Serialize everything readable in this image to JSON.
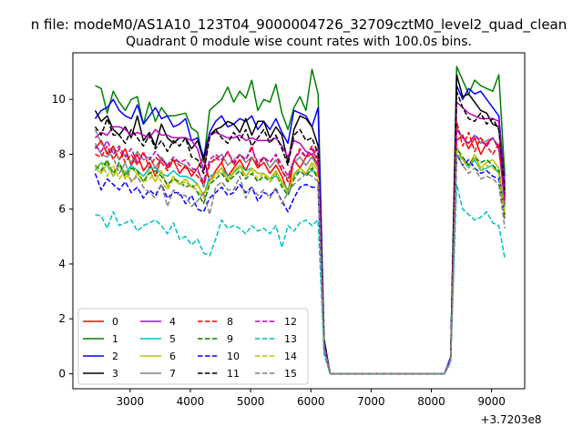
{
  "chart_data": {
    "type": "line",
    "suptitle": "n file: modeM0/AS1A10_123T04_9000004726_32709cztM0_level2_quad_clean",
    "title": "Quadrant 0 module wise count rates with 100.0s bins.",
    "xlabel": "",
    "ylabel": "",
    "x_offset_label": "+3.7203e8",
    "xlim": [
      2050,
      9550
    ],
    "ylim": [
      -0.55,
      11.7
    ],
    "x_ticks": [
      3000,
      4000,
      5000,
      6000,
      7000,
      8000,
      9000
    ],
    "x_tick_labels": [
      "3000",
      "4000",
      "5000",
      "6000",
      "7000",
      "8000",
      "9000"
    ],
    "y_ticks": [
      0,
      2,
      4,
      6,
      8,
      10
    ],
    "y_tick_labels": [
      "0",
      "2",
      "4",
      "6",
      "8",
      "10"
    ],
    "legend_position": "lower-left",
    "x": [
      2420,
      2520,
      2620,
      2720,
      2820,
      2920,
      3020,
      3120,
      3220,
      3320,
      3420,
      3520,
      3620,
      3720,
      3820,
      3920,
      4020,
      4120,
      4220,
      4320,
      4420,
      4520,
      4620,
      4720,
      4820,
      4920,
      5020,
      5120,
      5220,
      5320,
      5420,
      5520,
      5620,
      5720,
      5820,
      5920,
      6020,
      6120,
      6220,
      6320,
      6420,
      6520,
      6620,
      6720,
      6820,
      6920,
      7020,
      7120,
      7220,
      7320,
      7420,
      7520,
      7620,
      7720,
      7820,
      7920,
      8020,
      8120,
      8220,
      8320,
      8420,
      8520,
      8620,
      8720,
      8820,
      8920,
      9020,
      9120,
      9220
    ],
    "series": [
      {
        "name": "0",
        "color": "#ff0000",
        "dash": "solid",
        "values": [
          8.2,
          8.5,
          8.0,
          8.3,
          7.8,
          8.2,
          7.6,
          8.0,
          7.4,
          7.7,
          7.2,
          7.9,
          7.5,
          7.8,
          7.3,
          7.6,
          7.2,
          7.5,
          7.9,
          7.0,
          7.4,
          7.7,
          7.2,
          7.5,
          7.8,
          7.4,
          7.9,
          7.5,
          7.7,
          7.3,
          7.6,
          7.2,
          6.6,
          7.8,
          7.5,
          7.9,
          8.0,
          7.6,
          1.0,
          0,
          0,
          0,
          0,
          0,
          0,
          0,
          0,
          0,
          0,
          0,
          0,
          0,
          0,
          0,
          0,
          0,
          0,
          0,
          0,
          0.5,
          8.5,
          8.7,
          8.2,
          8.6,
          8.0,
          8.4,
          8.6,
          8.2,
          6.4
        ]
      },
      {
        "name": "1",
        "color": "#008000",
        "dash": "solid",
        "values": [
          10.5,
          10.4,
          9.5,
          10.3,
          9.9,
          9.6,
          10.0,
          10.1,
          9.1,
          9.9,
          9.2,
          9.7,
          9.4,
          9.4,
          9.45,
          9.5,
          8.95,
          8.8,
          7.7,
          9.6,
          9.8,
          10.0,
          10.45,
          9.9,
          10.3,
          10.05,
          10.7,
          9.6,
          10.0,
          9.9,
          10.55,
          9.5,
          8.9,
          9.7,
          10.1,
          9.6,
          11.1,
          10.2,
          1.3,
          0,
          0,
          0,
          0,
          0,
          0,
          0,
          0,
          0,
          0,
          0,
          0,
          0,
          0,
          0,
          0,
          0,
          0,
          0,
          0,
          0.6,
          11.2,
          10.7,
          10.2,
          10.7,
          10.5,
          10.4,
          10.3,
          10.9,
          7.2
        ]
      },
      {
        "name": "2",
        "color": "#0000ff",
        "dash": "solid",
        "values": [
          9.3,
          9.6,
          9.7,
          10.0,
          9.6,
          9.4,
          9.3,
          9.8,
          9.1,
          9.4,
          9.7,
          9.3,
          9.4,
          9.0,
          9.1,
          9.3,
          8.5,
          8.6,
          7.9,
          8.8,
          9.2,
          9.4,
          9.0,
          9.1,
          9.3,
          9.2,
          9.4,
          8.9,
          9.2,
          8.9,
          9.3,
          8.8,
          8.4,
          9.6,
          9.5,
          9.4,
          9.0,
          9.7,
          1.2,
          0,
          0,
          0,
          0,
          0,
          0,
          0,
          0,
          0,
          0,
          0,
          0,
          0,
          0,
          0,
          0,
          0,
          0,
          0,
          0,
          0.6,
          10.5,
          10.0,
          10.4,
          10.2,
          10.3,
          10.0,
          9.7,
          9.4,
          6.9
        ]
      },
      {
        "name": "3",
        "color": "#000000",
        "dash": "solid",
        "values": [
          9.6,
          9.2,
          9.4,
          8.9,
          8.7,
          9.0,
          8.6,
          9.4,
          8.5,
          8.8,
          8.3,
          9.1,
          8.6,
          8.4,
          8.6,
          8.6,
          8.2,
          8.5,
          7.8,
          8.7,
          8.9,
          9.0,
          9.2,
          9.1,
          8.8,
          9.3,
          8.7,
          9.2,
          9.2,
          8.6,
          9.0,
          8.7,
          7.7,
          8.9,
          9.4,
          9.3,
          9.0,
          8.3,
          1.1,
          0,
          0,
          0,
          0,
          0,
          0,
          0,
          0,
          0,
          0,
          0,
          0,
          0,
          0,
          0,
          0,
          0,
          0,
          0,
          0,
          0.5,
          10.9,
          10.1,
          10.2,
          9.9,
          9.6,
          9.5,
          9.1,
          9.0,
          6.5
        ]
      },
      {
        "name": "4",
        "color": "#bf00bf",
        "dash": "solid",
        "values": [
          8.6,
          8.8,
          8.7,
          9.0,
          9.0,
          8.9,
          8.7,
          8.8,
          8.7,
          8.6,
          8.9,
          8.7,
          8.7,
          8.6,
          8.6,
          8.6,
          8.5,
          8.2,
          7.4,
          8.7,
          8.8,
          8.7,
          8.6,
          8.6,
          8.7,
          8.5,
          8.6,
          8.5,
          8.5,
          8.5,
          8.6,
          8.3,
          7.9,
          8.5,
          8.4,
          8.1,
          8.0,
          8.2,
          1.1,
          0,
          0,
          0,
          0,
          0,
          0,
          0,
          0,
          0,
          0,
          0,
          0,
          0,
          0,
          0,
          0,
          0,
          0,
          0,
          0,
          0.5,
          9.9,
          9.7,
          9.5,
          9.4,
          9.3,
          9.3,
          9.3,
          9.2,
          6.7
        ]
      },
      {
        "name": "5",
        "color": "#00bfbf",
        "dash": "solid",
        "values": [
          7.4,
          7.7,
          7.6,
          7.2,
          7.6,
          7.3,
          7.6,
          7.4,
          7.2,
          7.5,
          7.5,
          7.3,
          7.2,
          7.4,
          7.2,
          7.2,
          7.1,
          6.9,
          6.5,
          7.2,
          7.3,
          7.5,
          7.2,
          7.3,
          7.6,
          7.4,
          7.5,
          7.3,
          7.3,
          7.1,
          7.2,
          7.0,
          6.7,
          7.2,
          7.5,
          7.3,
          7.4,
          7.3,
          0.9,
          0,
          0,
          0,
          0,
          0,
          0,
          0,
          0,
          0,
          0,
          0,
          0,
          0,
          0,
          0,
          0,
          0,
          0,
          0,
          0,
          0.5,
          8.0,
          7.8,
          7.5,
          7.8,
          7.4,
          7.5,
          7.6,
          7.3,
          5.9
        ]
      },
      {
        "name": "6",
        "color": "#bfbf00",
        "dash": "solid",
        "values": [
          7.5,
          7.3,
          7.7,
          7.2,
          7.6,
          7.1,
          7.5,
          7.3,
          7.0,
          7.4,
          7.0,
          7.4,
          6.8,
          7.2,
          6.9,
          7.1,
          6.8,
          6.9,
          6.5,
          7.0,
          7.3,
          7.5,
          7.0,
          7.4,
          7.6,
          7.2,
          7.5,
          7.3,
          7.3,
          7.1,
          7.4,
          7.0,
          6.6,
          7.3,
          7.5,
          7.3,
          7.7,
          7.4,
          0.9,
          0,
          0,
          0,
          0,
          0,
          0,
          0,
          0,
          0,
          0,
          0,
          0,
          0,
          0,
          0,
          0,
          0,
          0,
          0,
          0,
          0.5,
          8.3,
          7.8,
          7.6,
          8.0,
          7.5,
          7.7,
          7.8,
          7.5,
          5.8
        ]
      },
      {
        "name": "7",
        "color": "#808080",
        "dash": "solid",
        "values": [
          8.4,
          8.0,
          7.9,
          8.2,
          7.8,
          8.0,
          7.7,
          8.1,
          7.8,
          7.9,
          7.5,
          7.9,
          7.6,
          7.8,
          7.7,
          7.6,
          7.4,
          7.5,
          6.8,
          7.7,
          7.8,
          8.0,
          7.6,
          7.8,
          8.0,
          7.7,
          7.9,
          7.6,
          7.9,
          7.5,
          7.8,
          7.4,
          7.1,
          7.7,
          7.9,
          7.6,
          7.9,
          7.5,
          1.0,
          0,
          0,
          0,
          0,
          0,
          0,
          0,
          0,
          0,
          0,
          0,
          0,
          0,
          0,
          0,
          0,
          0,
          0,
          0,
          0,
          0.5,
          9.0,
          8.6,
          8.4,
          8.7,
          8.4,
          8.5,
          8.6,
          8.3,
          6.1
        ]
      },
      {
        "name": "8",
        "color": "#ff0000",
        "dash": "dashed",
        "values": [
          8.0,
          7.9,
          8.3,
          7.8,
          8.2,
          7.7,
          8.0,
          7.6,
          8.1,
          7.5,
          7.9,
          7.7,
          7.4,
          7.8,
          7.6,
          7.5,
          7.4,
          7.2,
          6.9,
          7.6,
          7.9,
          7.7,
          8.1,
          7.6,
          8.0,
          7.8,
          8.3,
          7.5,
          7.9,
          7.7,
          8.0,
          7.4,
          7.0,
          7.8,
          8.2,
          7.9,
          8.3,
          7.8,
          1.0,
          0,
          0,
          0,
          0,
          0,
          0,
          0,
          0,
          0,
          0,
          0,
          0,
          0,
          0,
          0,
          0,
          0,
          0,
          0,
          0,
          0.5,
          9.2,
          8.3,
          8.8,
          8.1,
          8.6,
          8.3,
          8.0,
          8.4,
          6.2
        ]
      },
      {
        "name": "9",
        "color": "#008000",
        "dash": "dashed",
        "values": [
          7.6,
          7.4,
          7.8,
          7.3,
          7.7,
          7.2,
          7.5,
          7.4,
          7.0,
          7.3,
          7.4,
          7.2,
          6.9,
          7.1,
          7.0,
          6.8,
          6.9,
          6.6,
          6.2,
          6.9,
          7.1,
          7.3,
          7.0,
          7.2,
          7.4,
          7.1,
          7.3,
          7.0,
          7.2,
          7.0,
          7.3,
          6.8,
          6.5,
          7.1,
          7.4,
          7.2,
          7.5,
          7.1,
          0.9,
          0,
          0,
          0,
          0,
          0,
          0,
          0,
          0,
          0,
          0,
          0,
          0,
          0,
          0,
          0,
          0,
          0,
          0,
          0,
          0,
          0.5,
          8.2,
          7.9,
          7.6,
          7.9,
          7.7,
          7.8,
          7.6,
          7.4,
          5.7
        ]
      },
      {
        "name": "10",
        "color": "#0000ff",
        "dash": "dashed",
        "values": [
          7.3,
          6.7,
          7.1,
          6.9,
          6.7,
          7.0,
          6.6,
          6.8,
          6.4,
          6.7,
          6.5,
          6.9,
          6.4,
          6.6,
          6.6,
          6.2,
          6.5,
          6.0,
          5.9,
          6.4,
          6.6,
          6.8,
          6.5,
          6.6,
          6.9,
          6.6,
          6.8,
          6.3,
          6.6,
          6.5,
          6.7,
          6.3,
          5.9,
          6.4,
          6.8,
          6.9,
          6.8,
          6.8,
          0.8,
          0,
          0,
          0,
          0,
          0,
          0,
          0,
          0,
          0,
          0,
          0,
          0,
          0,
          0,
          0,
          0,
          0,
          0,
          0,
          0,
          0.5,
          8.0,
          7.6,
          7.8,
          7.5,
          7.3,
          7.4,
          7.2,
          7.1,
          5.6
        ]
      },
      {
        "name": "11",
        "color": "#000000",
        "dash": "dashed",
        "values": [
          9.0,
          8.7,
          9.3,
          8.7,
          8.7,
          8.4,
          8.9,
          8.6,
          8.3,
          8.7,
          8.2,
          8.5,
          8.1,
          8.5,
          8.3,
          8.6,
          7.9,
          7.8,
          7.3,
          8.6,
          8.9,
          8.6,
          8.4,
          8.8,
          8.5,
          8.9,
          8.3,
          8.6,
          8.9,
          8.4,
          8.7,
          8.2,
          7.6,
          8.7,
          8.9,
          8.5,
          8.6,
          8.0,
          1.1,
          0,
          0,
          0,
          0,
          0,
          0,
          0,
          0,
          0,
          0,
          0,
          0,
          0,
          0,
          0,
          0,
          0,
          0,
          0,
          0,
          0.5,
          10.3,
          9.7,
          9.3,
          9.2,
          9.5,
          9.1,
          9.3,
          8.9,
          6.6
        ]
      },
      {
        "name": "12",
        "color": "#bf00bf",
        "dash": "dashed",
        "values": [
          8.3,
          8.1,
          8.5,
          8.0,
          8.3,
          7.9,
          8.2,
          7.7,
          8.0,
          7.8,
          8.1,
          7.8,
          7.6,
          7.9,
          7.7,
          7.8,
          7.5,
          7.4,
          7.0,
          7.8,
          8.0,
          7.8,
          8.1,
          7.7,
          8.0,
          7.8,
          8.2,
          7.7,
          7.9,
          7.7,
          8.0,
          7.6,
          7.2,
          7.8,
          8.1,
          7.9,
          8.2,
          7.7,
          1.0,
          0,
          0,
          0,
          0,
          0,
          0,
          0,
          0,
          0,
          0,
          0,
          0,
          0,
          0,
          0,
          0,
          0,
          0,
          0,
          0,
          0.5,
          8.9,
          8.6,
          8.4,
          8.7,
          8.5,
          8.3,
          8.6,
          8.2,
          6.3
        ]
      },
      {
        "name": "13",
        "color": "#00bfbf",
        "dash": "dashed",
        "values": [
          5.8,
          5.75,
          5.3,
          5.9,
          5.4,
          5.5,
          5.6,
          5.2,
          5.4,
          5.5,
          5.6,
          5.4,
          5.1,
          5.5,
          4.9,
          5.0,
          4.7,
          4.9,
          4.4,
          4.3,
          4.9,
          5.6,
          5.3,
          5.4,
          5.3,
          5.1,
          5.4,
          5.2,
          5.3,
          5.1,
          5.4,
          4.6,
          5.4,
          5.2,
          5.5,
          5.6,
          5.4,
          5.6,
          0.7,
          0,
          0,
          0,
          0,
          0,
          0,
          0,
          0,
          0,
          0,
          0,
          0,
          0,
          0,
          0,
          0,
          0,
          0,
          0,
          0,
          0.4,
          6.9,
          6.0,
          5.8,
          5.6,
          5.7,
          5.9,
          5.5,
          5.4,
          4.2
        ]
      },
      {
        "name": "14",
        "color": "#bfbf00",
        "dash": "dashed",
        "values": [
          7.5,
          7.7,
          7.2,
          7.6,
          7.1,
          7.4,
          7.0,
          7.3,
          7.0,
          7.1,
          7.3,
          7.0,
          6.7,
          7.1,
          6.9,
          7.0,
          6.8,
          6.7,
          6.4,
          7.0,
          7.2,
          7.4,
          7.1,
          7.3,
          7.5,
          7.2,
          7.4,
          7.1,
          7.3,
          7.0,
          7.3,
          6.9,
          6.6,
          7.2,
          7.5,
          7.3,
          7.6,
          7.2,
          0.9,
          0,
          0,
          0,
          0,
          0,
          0,
          0,
          0,
          0,
          0,
          0,
          0,
          0,
          0,
          0,
          0,
          0,
          0,
          0,
          0,
          0.5,
          8.1,
          7.8,
          7.5,
          7.9,
          7.4,
          7.6,
          7.5,
          7.3,
          5.7
        ]
      },
      {
        "name": "15",
        "color": "#808080",
        "dash": "dashed",
        "values": [
          8.9,
          8.4,
          8.1,
          7.9,
          7.3,
          7.7,
          7.0,
          7.2,
          6.8,
          6.6,
          6.4,
          6.9,
          6.1,
          6.7,
          6.5,
          6.5,
          6.1,
          6.3,
          6.6,
          5.8,
          6.8,
          7.0,
          6.7,
          6.7,
          7.2,
          6.4,
          6.8,
          6.5,
          6.7,
          6.4,
          6.8,
          6.2,
          6.6,
          6.9,
          7.1,
          7.3,
          7.2,
          7.0,
          0.9,
          0,
          0,
          0,
          0,
          0,
          0,
          0,
          0,
          0,
          0,
          0,
          0,
          0,
          0,
          0,
          0,
          0,
          0,
          0,
          0,
          0.5,
          8.0,
          7.6,
          7.3,
          7.5,
          7.1,
          7.2,
          7.1,
          6.9,
          5.3
        ]
      }
    ]
  }
}
